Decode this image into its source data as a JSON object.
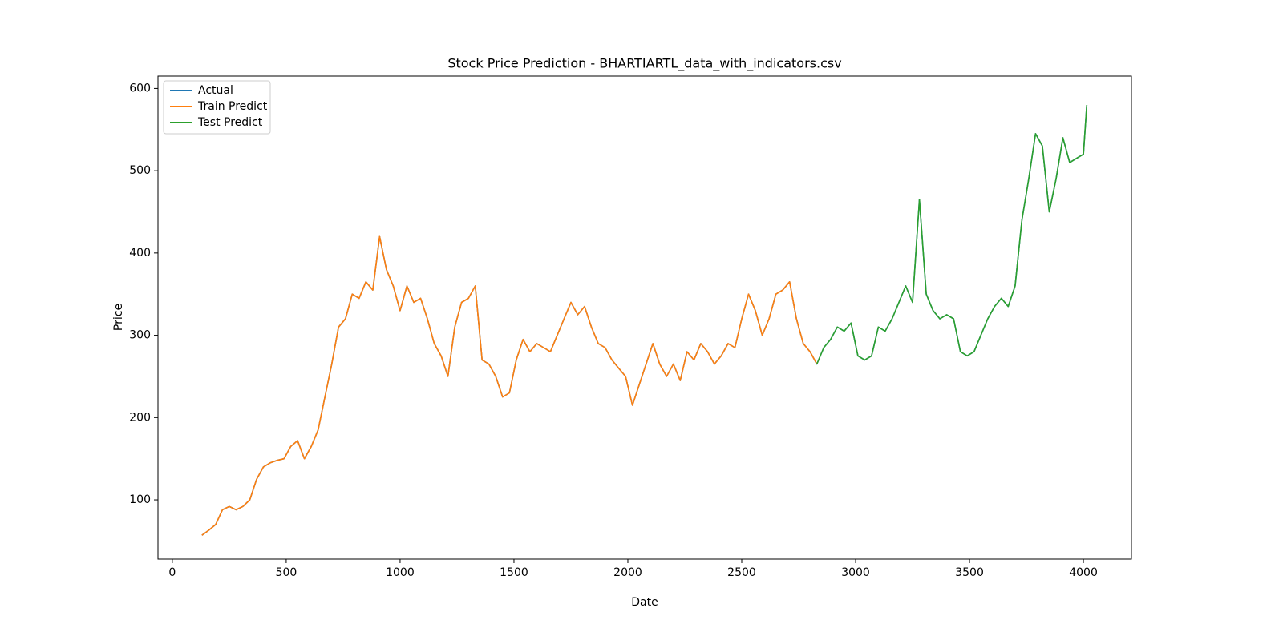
{
  "chart_data": {
    "type": "line",
    "title": "Stock Price Prediction - BHARTIARTL_data_with_indicators.csv",
    "x_label": "Date",
    "y_label": "Price",
    "x": [
      130,
      160,
      190,
      220,
      250,
      280,
      310,
      340,
      370,
      400,
      430,
      460,
      490,
      520,
      550,
      580,
      610,
      640,
      670,
      700,
      730,
      760,
      790,
      820,
      850,
      880,
      910,
      940,
      970,
      1000,
      1030,
      1060,
      1090,
      1120,
      1150,
      1180,
      1210,
      1240,
      1270,
      1300,
      1330,
      1360,
      1390,
      1420,
      1450,
      1480,
      1510,
      1540,
      1570,
      1600,
      1630,
      1660,
      1690,
      1720,
      1750,
      1780,
      1810,
      1840,
      1870,
      1900,
      1930,
      1960,
      1990,
      2020,
      2050,
      2080,
      2110,
      2140,
      2170,
      2200,
      2230,
      2260,
      2290,
      2320,
      2350,
      2380,
      2410,
      2440,
      2470,
      2500,
      2530,
      2560,
      2590,
      2620,
      2650,
      2680,
      2710,
      2740,
      2770,
      2800,
      2830,
      2860,
      2890,
      2920,
      2950,
      2980,
      3010,
      3040,
      3070,
      3100,
      3130,
      3160,
      3190,
      3220,
      3250,
      3280,
      3310,
      3340,
      3370,
      3400,
      3430,
      3460,
      3490,
      3520,
      3550,
      3580,
      3610,
      3640,
      3670,
      3700,
      3730,
      3760,
      3790,
      3820,
      3850,
      3880,
      3910,
      3940,
      3970,
      4000,
      4015
    ],
    "series": [
      {
        "name": "Actual",
        "color": "#1f77b4",
        "values": [
          57,
          63,
          70,
          88,
          92,
          88,
          92,
          100,
          125,
          140,
          145,
          148,
          150,
          165,
          172,
          150,
          165,
          185,
          225,
          265,
          310,
          320,
          350,
          345,
          365,
          355,
          420,
          380,
          360,
          330,
          360,
          340,
          345,
          320,
          290,
          275,
          250,
          310,
          340,
          345,
          360,
          270,
          265,
          250,
          225,
          230,
          270,
          295,
          280,
          290,
          285,
          280,
          300,
          320,
          340,
          325,
          335,
          310,
          290,
          285,
          270,
          260,
          250,
          215,
          240,
          265,
          290,
          265,
          250,
          265,
          245,
          280,
          270,
          290,
          280,
          265,
          275,
          290,
          285,
          320,
          350,
          330,
          300,
          320,
          350,
          355,
          365,
          320,
          290,
          280,
          265,
          285,
          295,
          310,
          305,
          315,
          275,
          270,
          275,
          310,
          305,
          320,
          340,
          360,
          340,
          465,
          350,
          330,
          320,
          325,
          320,
          280,
          275,
          280,
          300,
          320,
          335,
          345,
          335,
          360,
          440,
          490,
          545,
          530,
          450,
          490,
          540,
          510,
          515,
          520,
          580
        ]
      },
      {
        "name": "Train Predict",
        "color": "#ff7f0e",
        "values": [
          57,
          63,
          70,
          88,
          92,
          88,
          92,
          100,
          125,
          140,
          145,
          148,
          150,
          165,
          172,
          150,
          165,
          185,
          225,
          265,
          310,
          320,
          350,
          345,
          365,
          355,
          420,
          380,
          360,
          330,
          360,
          340,
          345,
          320,
          290,
          275,
          250,
          310,
          340,
          345,
          360,
          270,
          265,
          250,
          225,
          230,
          270,
          295,
          280,
          290,
          285,
          280,
          300,
          320,
          340,
          325,
          335,
          310,
          290,
          285,
          270,
          260,
          250,
          215,
          240,
          265,
          290,
          265,
          250,
          265,
          245,
          280,
          270,
          290,
          280,
          265,
          275,
          290,
          285,
          320,
          350,
          330,
          300,
          320,
          350,
          355,
          365,
          320,
          290,
          280,
          265,
          null,
          null,
          null,
          null,
          null,
          null,
          null,
          null,
          null,
          null,
          null,
          null,
          null,
          null,
          null,
          null,
          null,
          null,
          null,
          null,
          null,
          null,
          null,
          null,
          null,
          null,
          null,
          null,
          null,
          null,
          null,
          null,
          null,
          null,
          null,
          null,
          null,
          null,
          null,
          null
        ]
      },
      {
        "name": "Test Predict",
        "color": "#2ca02c",
        "values": [
          null,
          null,
          null,
          null,
          null,
          null,
          null,
          null,
          null,
          null,
          null,
          null,
          null,
          null,
          null,
          null,
          null,
          null,
          null,
          null,
          null,
          null,
          null,
          null,
          null,
          null,
          null,
          null,
          null,
          null,
          null,
          null,
          null,
          null,
          null,
          null,
          null,
          null,
          null,
          null,
          null,
          null,
          null,
          null,
          null,
          null,
          null,
          null,
          null,
          null,
          null,
          null,
          null,
          null,
          null,
          null,
          null,
          null,
          null,
          null,
          null,
          null,
          null,
          null,
          null,
          null,
          null,
          null,
          null,
          null,
          null,
          null,
          null,
          null,
          null,
          null,
          null,
          null,
          null,
          null,
          null,
          null,
          null,
          null,
          null,
          null,
          null,
          null,
          null,
          null,
          265,
          285,
          295,
          310,
          305,
          315,
          275,
          270,
          275,
          310,
          305,
          320,
          340,
          360,
          340,
          465,
          350,
          330,
          320,
          325,
          320,
          280,
          275,
          280,
          300,
          320,
          335,
          345,
          335,
          360,
          440,
          490,
          545,
          530,
          450,
          490,
          540,
          510,
          515,
          520,
          580
        ]
      }
    ],
    "xlim": [
      -63,
      4211
    ],
    "ylim": [
      28,
      615
    ],
    "xticks": [
      0,
      500,
      1000,
      1500,
      2000,
      2500,
      3000,
      3500,
      4000
    ],
    "yticks": [
      100,
      200,
      300,
      400,
      500,
      600
    ],
    "legend": "upper left"
  }
}
